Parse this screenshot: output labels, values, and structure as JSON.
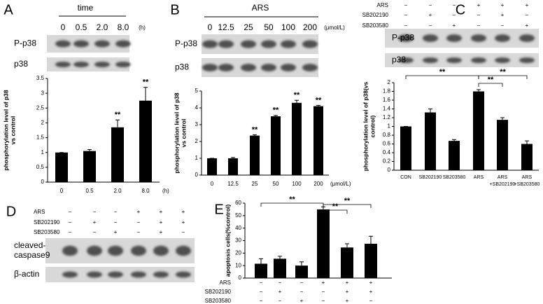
{
  "chart_data": [
    {
      "type": "bar",
      "panel": "A",
      "header": "time",
      "lanes": [
        "0",
        "0.5",
        "2.0",
        "8.0"
      ],
      "lane_unit": "(h)",
      "blots": [
        [
          "P-p38"
        ],
        [
          "p38"
        ]
      ],
      "y_label": [
        "phosphorylation level of p38",
        "vs control"
      ],
      "categories": [
        "0",
        "0.5",
        "2.0",
        "8.0"
      ],
      "x_unit": "(h)",
      "values": [
        1,
        1.05,
        1.85,
        2.75
      ],
      "errors": [
        0,
        0.05,
        0.25,
        0.45
      ],
      "significance": [
        null,
        null,
        "**",
        "**"
      ],
      "ylim": [
        0,
        3.5
      ],
      "yticks": [
        0,
        0.5,
        1,
        1.5,
        2,
        2.5,
        3,
        3.5
      ],
      "color": "#000000"
    },
    {
      "type": "bar",
      "panel": "B",
      "header": "ARS",
      "lanes": [
        "0",
        "12.5",
        "25",
        "50",
        "100",
        "200"
      ],
      "lane_unit": "(μmol/L)",
      "blots": [
        [
          "P-p38"
        ],
        [
          "p38"
        ]
      ],
      "y_label": [
        "phosphorylation level of p38",
        "vs control"
      ],
      "categories": [
        "0",
        "12.5",
        "25",
        "50",
        "100",
        "200"
      ],
      "x_unit": "(μmol/L)",
      "values": [
        1,
        1,
        2.35,
        3.5,
        4.3,
        4.1
      ],
      "errors": [
        0,
        0.05,
        0.05,
        0.05,
        0.15,
        0.05
      ],
      "significance": [
        null,
        null,
        "**",
        "**",
        "**",
        "**"
      ],
      "ylim": [
        0,
        5
      ],
      "yticks": [
        0,
        1,
        2,
        3,
        4,
        5
      ],
      "color": "#000000"
    },
    {
      "type": "bar",
      "panel": "C",
      "treatments": [
        {
          "name": "ARS",
          "signs": [
            "−",
            "−",
            "−",
            "+",
            "+",
            "+"
          ]
        },
        {
          "name": "SB202190",
          "signs": [
            "−",
            "+",
            "−",
            "−",
            "+",
            "−"
          ]
        },
        {
          "name": "SB203580",
          "signs": [
            "−",
            "−",
            "+",
            "−",
            "−",
            "+"
          ]
        }
      ],
      "blots": [
        [
          "P-p38"
        ],
        [
          "p38"
        ]
      ],
      "y_label": [
        "phosphorylation level of p38(vs",
        "control)"
      ],
      "categories": [
        [
          "CON"
        ],
        [
          "SB202190"
        ],
        [
          "SB203580"
        ],
        [
          "ARS"
        ],
        [
          "ARS",
          "+SB202190"
        ],
        [
          "ARS",
          "+SB203580"
        ]
      ],
      "values": [
        1,
        1.32,
        0.67,
        1.8,
        1.15,
        0.6
      ],
      "errors": [
        0,
        0.08,
        0.03,
        0.04,
        0.05,
        0.07
      ],
      "brackets": [
        {
          "from": 0,
          "to": 3,
          "label": "**"
        },
        {
          "from": 3,
          "to": 4,
          "label": "**"
        },
        {
          "from": 3,
          "to": 5,
          "label": "**"
        }
      ],
      "ylim": [
        0,
        2
      ],
      "yticks": [
        0,
        0.2,
        0.4,
        0.6,
        0.8,
        1,
        1.2,
        1.4,
        1.6,
        1.8,
        2
      ],
      "color": "#000000"
    },
    {
      "type": "bar",
      "panel": "E",
      "treatments": [
        {
          "name": "ARS",
          "signs": [
            "−",
            "−",
            "−",
            "+",
            "+",
            "+"
          ]
        },
        {
          "name": "SB202190",
          "signs": [
            "−",
            "+",
            "−",
            "−",
            "+",
            "+"
          ]
        },
        {
          "name": "SB203580",
          "signs": [
            "−",
            "−",
            "+",
            "−",
            "+",
            "−"
          ]
        }
      ],
      "y_label": [
        "apoptosis cells(%control)"
      ],
      "values": [
        11.5,
        15.5,
        10,
        55,
        24.5,
        27.5
      ],
      "errors": [
        4,
        2,
        3,
        2,
        3,
        6
      ],
      "brackets": [
        {
          "from": 0,
          "to": 3,
          "label": "**"
        },
        {
          "from": 3,
          "to": 4,
          "label": "**"
        },
        {
          "from": 3,
          "to": 5,
          "label": "**"
        }
      ],
      "ylim": [
        0,
        60
      ],
      "yticks": [
        0,
        10,
        20,
        30,
        40,
        50,
        60
      ],
      "color": "#000000"
    }
  ],
  "panels": [
    {
      "panel": "D",
      "treatments": [
        {
          "name": "ARS",
          "signs": [
            "−",
            "−",
            "−",
            "+",
            "+",
            "+"
          ]
        },
        {
          "name": "SB202190",
          "signs": [
            "−",
            "+",
            "−",
            "−",
            "+",
            "+"
          ]
        },
        {
          "name": "SB203580",
          "signs": [
            "−",
            "−",
            "+",
            "−",
            "+",
            "−"
          ]
        }
      ],
      "blots": [
        [
          "cleaved-",
          "caspase9"
        ],
        [
          "β-actin"
        ]
      ]
    }
  ]
}
